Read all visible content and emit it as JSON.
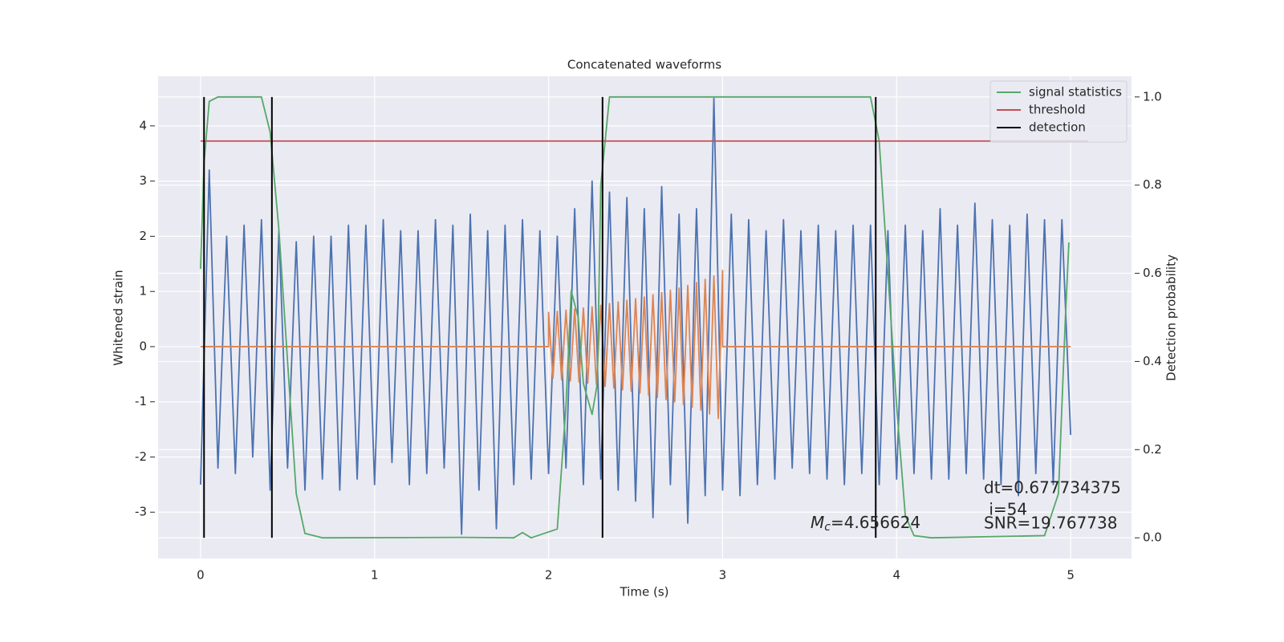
{
  "chart_data": {
    "type": "line",
    "title": "Concatenated waveforms",
    "xlabel": "Time (s)",
    "ylabel": "Whitened strain",
    "y2label": "Detection probability",
    "xlim": [
      -0.244,
      5.35
    ],
    "ylim": [
      -3.84,
      4.9
    ],
    "y2lim": [
      -0.047,
      1.047
    ],
    "xticks": [
      0,
      1,
      2,
      3,
      4,
      5
    ],
    "yticks": [
      -3,
      -2,
      -1,
      0,
      1,
      2,
      3,
      4
    ],
    "y2ticks": [
      {
        "value": 0,
        "label": "0.0"
      },
      0.2,
      0.4,
      0.6,
      0.8,
      {
        "value": 1,
        "label": "1.0"
      }
    ],
    "grid": true,
    "legend": "upper right",
    "series": [
      {
        "color": "#4c72b0",
        "x": [
          0,
          0.05,
          0.1,
          0.15,
          0.2,
          0.25,
          0.3,
          0.35,
          0.4,
          0.45,
          0.5,
          0.55,
          0.6,
          0.65,
          0.7,
          0.75,
          0.8,
          0.85,
          0.9,
          0.95,
          1.0,
          1.05,
          1.1,
          1.15,
          1.2,
          1.25,
          1.3,
          1.35,
          1.4,
          1.45,
          1.5,
          1.55,
          1.6,
          1.65,
          1.7,
          1.75,
          1.8,
          1.85,
          1.9,
          1.95,
          2.0,
          2.05,
          2.1,
          2.15,
          2.2,
          2.25,
          2.3,
          2.35,
          2.4,
          2.45,
          2.5,
          2.55,
          2.6,
          2.65,
          2.7,
          2.75,
          2.8,
          2.85,
          2.9,
          2.95,
          3.0,
          3.05,
          3.1,
          3.15,
          3.2,
          3.25,
          3.3,
          3.35,
          3.4,
          3.45,
          3.5,
          3.55,
          3.6,
          3.65,
          3.7,
          3.75,
          3.8,
          3.85,
          3.9,
          3.95,
          4.0,
          4.05,
          4.1,
          4.15,
          4.2,
          4.25,
          4.3,
          4.35,
          4.4,
          4.45,
          4.5,
          4.55,
          4.6,
          4.65,
          4.7,
          4.75,
          4.8,
          4.85,
          4.9,
          4.95,
          5.0
        ],
        "values": [
          -2.5,
          3.2,
          -2.2,
          2.0,
          -2.3,
          2.2,
          -2.0,
          2.3,
          -2.6,
          2.1,
          -2.2,
          1.9,
          -2.6,
          2.0,
          -2.4,
          2.0,
          -2.6,
          2.2,
          -2.4,
          2.2,
          -2.5,
          2.3,
          -2.1,
          2.1,
          -2.5,
          2.1,
          -2.3,
          2.3,
          -2.2,
          2.2,
          -3.4,
          2.4,
          -2.6,
          2.1,
          -3.3,
          2.2,
          -2.5,
          2.3,
          -2.4,
          2.1,
          -2.3,
          2.0,
          -2.2,
          2.5,
          -2.5,
          3.0,
          -2.4,
          2.8,
          -2.6,
          2.7,
          -2.8,
          2.5,
          -3.1,
          2.9,
          -2.5,
          2.4,
          -3.2,
          2.5,
          -2.7,
          4.5,
          -2.6,
          2.4,
          -2.7,
          2.3,
          -2.5,
          2.1,
          -2.4,
          2.3,
          -2.2,
          2.1,
          -2.3,
          2.2,
          -2.4,
          2.1,
          -2.5,
          2.2,
          -2.3,
          2.2,
          -2.5,
          2.1,
          -2.4,
          2.2,
          -2.3,
          2.1,
          -2.4,
          2.5,
          -2.4,
          2.2,
          -2.3,
          2.6,
          -2.4,
          2.3,
          -2.5,
          2.2,
          -2.7,
          2.4,
          -2.3,
          2.3,
          -2.5,
          2.3,
          -1.6
        ]
      },
      {
        "color": "#dd8452",
        "x": [
          0,
          2.0,
          2.0,
          2.025,
          2.05,
          2.075,
          2.1,
          2.125,
          2.15,
          2.175,
          2.2,
          2.225,
          2.25,
          2.275,
          2.3,
          2.325,
          2.35,
          2.375,
          2.4,
          2.425,
          2.45,
          2.475,
          2.5,
          2.525,
          2.55,
          2.575,
          2.6,
          2.625,
          2.65,
          2.675,
          2.7,
          2.725,
          2.75,
          2.775,
          2.8,
          2.825,
          2.85,
          2.875,
          2.9,
          2.925,
          2.95,
          2.975,
          3.0,
          3.0,
          5.0
        ],
        "values": [
          0,
          0,
          0.62,
          -0.57,
          0.64,
          -0.6,
          0.66,
          -0.62,
          0.68,
          -0.64,
          0.7,
          -0.66,
          0.72,
          -0.69,
          0.75,
          -0.72,
          0.78,
          -0.75,
          0.81,
          -0.78,
          0.84,
          -0.81,
          0.87,
          -0.84,
          0.9,
          -0.88,
          0.94,
          -0.92,
          0.98,
          -0.96,
          1.02,
          -1.0,
          1.06,
          -1.05,
          1.11,
          -1.1,
          1.16,
          -1.15,
          1.22,
          -1.22,
          1.28,
          -1.3,
          1.38,
          0,
          0
        ]
      },
      {
        "name": "signal statistics",
        "color": "#55a868",
        "axis": "y2",
        "x": [
          0,
          0.02,
          0.05,
          0.1,
          0.35,
          0.4,
          0.45,
          0.5,
          0.55,
          0.6,
          0.7,
          1.5,
          1.8,
          1.85,
          1.9,
          2.05,
          2.1,
          2.13,
          2.17,
          2.2,
          2.25,
          2.28,
          2.3,
          2.35,
          3.85,
          3.9,
          3.95,
          4.0,
          4.05,
          4.1,
          4.2,
          4.85,
          4.93,
          4.97,
          4.99
        ],
        "values": [
          0.61,
          0.85,
          0.99,
          1,
          1,
          0.92,
          0.7,
          0.4,
          0.1,
          0.01,
          0,
          0.001,
          0,
          0.012,
          0,
          0.02,
          0.3,
          0.56,
          0.5,
          0.35,
          0.28,
          0.35,
          0.8,
          1,
          1,
          0.9,
          0.6,
          0.3,
          0.05,
          0.005,
          0,
          0.005,
          0.1,
          0.5,
          0.67
        ]
      },
      {
        "name": "threshold",
        "color": "#c44e52",
        "axis": "y2",
        "x": [
          0,
          5.1
        ],
        "values": [
          0.9,
          0.9
        ]
      },
      {
        "name": "detection",
        "color": "#000000",
        "axis": "y2",
        "kind": "vlines",
        "x": [
          0.02,
          0.41,
          2.31,
          3.88
        ],
        "ymin": 0,
        "ymax": 1
      }
    ],
    "annotations": [
      "M",
      "c",
      "=4.656624",
      "dt=0.677734375",
      " i=54",
      "SNR=19.767738"
    ]
  }
}
